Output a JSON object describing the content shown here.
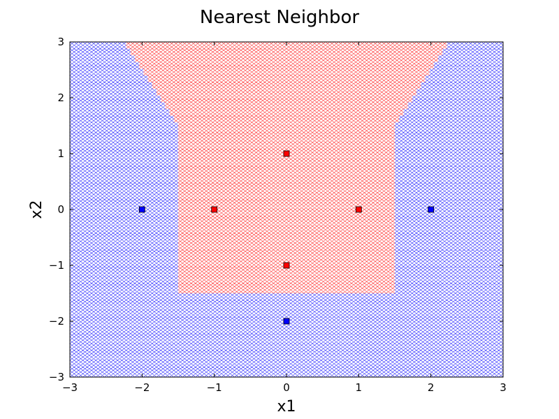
{
  "chart_data": {
    "type": "scatter",
    "title": "Nearest Neighbor",
    "xlabel": "x1",
    "ylabel": "x2",
    "xlim": [
      -3,
      3
    ],
    "ylim": [
      -3,
      3
    ],
    "xticks": [
      -3,
      -2,
      -1,
      0,
      1,
      2,
      3
    ],
    "yticks": [
      -3,
      -2,
      -1,
      0,
      1,
      2,
      3
    ],
    "grid": false,
    "legend": "none",
    "background_region": {
      "description": "decision regions of a nearest-neighbor classifier drawn with 'x' hatching",
      "colors": {
        "class_blue": "#0000ff",
        "class_red": "#ff0000"
      }
    },
    "series": [
      {
        "color": "#ff0000",
        "marker": "square",
        "points": [
          [
            0,
            1
          ],
          [
            -1,
            0
          ],
          [
            1,
            0
          ],
          [
            0,
            -1
          ]
        ]
      },
      {
        "color": "#0000ff",
        "marker": "square",
        "points": [
          [
            -2,
            0
          ],
          [
            2,
            0
          ],
          [
            0,
            -2
          ]
        ]
      }
    ]
  }
}
